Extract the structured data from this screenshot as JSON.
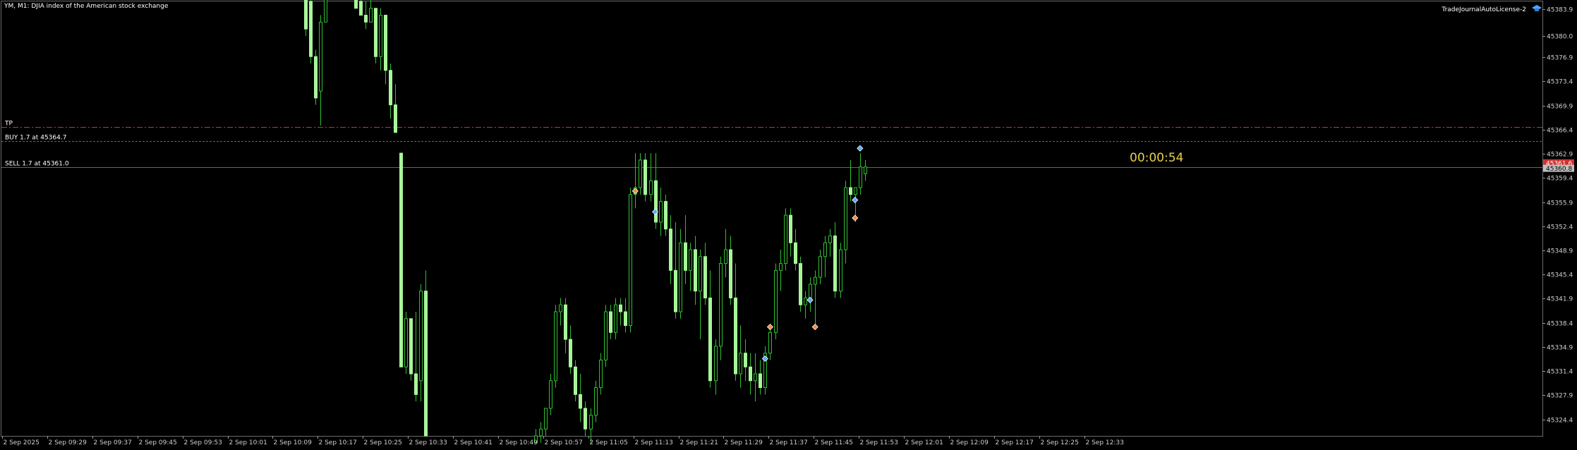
{
  "header": {
    "title": "YM, M1:  DJIA index of the American stock exchange"
  },
  "license_label": "TradeJournalAutoLicense-2",
  "countdown": "00:00:54",
  "chart_data": {
    "type": "candlestick",
    "ylim": [
      45322.0,
      45385.0
    ],
    "yticks": [
      "45383.9",
      "45380.0",
      "45376.9",
      "45373.4",
      "45369.9",
      "45366.4",
      "45362.9",
      "45359.4",
      "45355.9",
      "45352.4",
      "45348.9",
      "45345.4",
      "45341.9",
      "45338.4",
      "45334.9",
      "45331.4",
      "45327.9",
      "45324.4"
    ],
    "xticks": [
      "2 Sep 2025",
      "2 Sep 09:29",
      "2 Sep 09:37",
      "2 Sep 09:45",
      "2 Sep 09:53",
      "2 Sep 10:01",
      "2 Sep 10:09",
      "2 Sep 10:17",
      "2 Sep 10:25",
      "2 Sep 10:33",
      "2 Sep 10:41",
      "2 Sep 10:49",
      "2 Sep 10:57",
      "2 Sep 11:05",
      "2 Sep 11:13",
      "2 Sep 11:21",
      "2 Sep 11:29",
      "2 Sep 11:37",
      "2 Sep 11:45",
      "2 Sep 11:53",
      "2 Sep 12:01",
      "2 Sep 12:09",
      "2 Sep 12:17",
      "2 Sep 12:25",
      "2 Sep 12:33"
    ],
    "levels": [
      {
        "label": "TP",
        "price": 45366.8,
        "color": "#b83a3a",
        "style": "dashdot"
      },
      {
        "label": "BUY 1.7 at 45364.7",
        "price": 45364.7,
        "color": "#2e8b2e",
        "style": "dashed"
      },
      {
        "label": "SELL 1.7 at 45361.0",
        "price": 45361.0,
        "color": "#e03030",
        "style": "solid"
      }
    ],
    "price_tags": [
      {
        "text": "45361.6",
        "price": 45361.6,
        "bg": "#d03030"
      },
      {
        "text": "45360.8",
        "price": 45360.8,
        "bg": "#c0c0c0"
      }
    ],
    "candles": [
      {
        "i": 0,
        "o": 45386,
        "h": 45386,
        "l": 45380,
        "c": 45381
      },
      {
        "i": 1,
        "o": 45385,
        "h": 45386,
        "l": 45376,
        "c": 45377
      },
      {
        "i": 2,
        "o": 45377,
        "h": 45378,
        "l": 45370,
        "c": 45371
      },
      {
        "i": 3,
        "o": 45372,
        "h": 45383,
        "l": 45367,
        "c": 45382
      },
      {
        "i": 4,
        "o": 45382,
        "h": 45386,
        "l": 45382,
        "c": 45386
      },
      {
        "i": 10,
        "o": 45386,
        "h": 45386,
        "l": 45384,
        "c": 45384
      },
      {
        "i": 11,
        "o": 45385,
        "h": 45386,
        "l": 45383,
        "c": 45383
      },
      {
        "i": 12,
        "o": 45383,
        "h": 45385,
        "l": 45381,
        "c": 45382
      },
      {
        "i": 13,
        "o": 45382,
        "h": 45386,
        "l": 45382,
        "c": 45384
      },
      {
        "i": 14,
        "o": 45384,
        "h": 45384,
        "l": 45376,
        "c": 45377
      },
      {
        "i": 15,
        "o": 45377,
        "h": 45384,
        "l": 45375,
        "c": 45383
      },
      {
        "i": 16,
        "o": 45383,
        "h": 45383,
        "l": 45373,
        "c": 45375
      },
      {
        "i": 17,
        "o": 45375,
        "h": 45376,
        "l": 45368,
        "c": 45370
      },
      {
        "i": 18,
        "o": 45370,
        "h": 45373,
        "l": 45366,
        "c": 45366
      },
      {
        "i": 19,
        "o": 45363,
        "h": 45363,
        "l": 45332,
        "c": 45332
      },
      {
        "i": 20,
        "o": 45332,
        "h": 45340,
        "l": 45331,
        "c": 45339
      },
      {
        "i": 21,
        "o": 45339,
        "h": 45339,
        "l": 45330,
        "c": 45331
      },
      {
        "i": 22,
        "o": 45331,
        "h": 45340,
        "l": 45327,
        "c": 45328
      },
      {
        "i": 23,
        "o": 45330,
        "h": 45344,
        "l": 45327,
        "c": 45343
      },
      {
        "i": 24,
        "o": 45343,
        "h": 45346,
        "l": 45322,
        "c": 45322
      },
      {
        "i": 46,
        "o": 45321,
        "h": 45323,
        "l": 45321,
        "c": 45322
      },
      {
        "i": 47,
        "o": 45322,
        "h": 45324,
        "l": 45321,
        "c": 45323
      },
      {
        "i": 48,
        "o": 45323,
        "h": 45326,
        "l": 45322,
        "c": 45326
      },
      {
        "i": 49,
        "o": 45326,
        "h": 45331,
        "l": 45325,
        "c": 45330
      },
      {
        "i": 50,
        "o": 45330,
        "h": 45341,
        "l": 45329,
        "c": 45340
      },
      {
        "i": 51,
        "o": 45340,
        "h": 45342,
        "l": 45338,
        "c": 45341
      },
      {
        "i": 52,
        "o": 45341,
        "h": 45342,
        "l": 45334,
        "c": 45336
      },
      {
        "i": 53,
        "o": 45336,
        "h": 45338,
        "l": 45331,
        "c": 45332
      },
      {
        "i": 54,
        "o": 45332,
        "h": 45333,
        "l": 45327,
        "c": 45328
      },
      {
        "i": 55,
        "o": 45328,
        "h": 45331,
        "l": 45324,
        "c": 45326
      },
      {
        "i": 56,
        "o": 45326,
        "h": 45327,
        "l": 45322,
        "c": 45323
      },
      {
        "i": 57,
        "o": 45323,
        "h": 45326,
        "l": 45321,
        "c": 45325
      },
      {
        "i": 58,
        "o": 45325,
        "h": 45330,
        "l": 45324,
        "c": 45329
      },
      {
        "i": 59,
        "o": 45329,
        "h": 45334,
        "l": 45328,
        "c": 45333
      },
      {
        "i": 60,
        "o": 45333,
        "h": 45341,
        "l": 45332,
        "c": 45340
      },
      {
        "i": 61,
        "o": 45340,
        "h": 45341,
        "l": 45336,
        "c": 45337
      },
      {
        "i": 62,
        "o": 45337,
        "h": 45342,
        "l": 45336,
        "c": 45341
      },
      {
        "i": 63,
        "o": 45341,
        "h": 45342,
        "l": 45338,
        "c": 45340
      },
      {
        "i": 64,
        "o": 45340,
        "h": 45342,
        "l": 45337,
        "c": 45338
      },
      {
        "i": 65,
        "o": 45338,
        "h": 45358,
        "l": 45337,
        "c": 45357
      },
      {
        "i": 66,
        "o": 45357,
        "h": 45363,
        "l": 45355,
        "c": 45358
      },
      {
        "i": 67,
        "o": 45358,
        "h": 45363,
        "l": 45357,
        "c": 45362
      },
      {
        "i": 68,
        "o": 45362,
        "h": 45363,
        "l": 45356,
        "c": 45357
      },
      {
        "i": 69,
        "o": 45357,
        "h": 45363,
        "l": 45356,
        "c": 45359
      },
      {
        "i": 70,
        "o": 45359,
        "h": 45363,
        "l": 45352,
        "c": 45353
      },
      {
        "i": 71,
        "o": 45353,
        "h": 45358,
        "l": 45351,
        "c": 45356
      },
      {
        "i": 72,
        "o": 45356,
        "h": 45357,
        "l": 45351,
        "c": 45352
      },
      {
        "i": 73,
        "o": 45352,
        "h": 45354,
        "l": 45344,
        "c": 45346
      },
      {
        "i": 74,
        "o": 45346,
        "h": 45353,
        "l": 45339,
        "c": 45340
      },
      {
        "i": 75,
        "o": 45340,
        "h": 45352,
        "l": 45339,
        "c": 45350
      },
      {
        "i": 76,
        "o": 45350,
        "h": 45354,
        "l": 45344,
        "c": 45346
      },
      {
        "i": 77,
        "o": 45346,
        "h": 45350,
        "l": 45343,
        "c": 45349
      },
      {
        "i": 78,
        "o": 45349,
        "h": 45351,
        "l": 45341,
        "c": 45343
      },
      {
        "i": 79,
        "o": 45343,
        "h": 45349,
        "l": 45336,
        "c": 45348
      },
      {
        "i": 80,
        "o": 45348,
        "h": 45350,
        "l": 45341,
        "c": 45342
      },
      {
        "i": 81,
        "o": 45342,
        "h": 45346,
        "l": 45329,
        "c": 45330
      },
      {
        "i": 82,
        "o": 45330,
        "h": 45336,
        "l": 45328,
        "c": 45335
      },
      {
        "i": 83,
        "o": 45335,
        "h": 45348,
        "l": 45333,
        "c": 45347
      },
      {
        "i": 84,
        "o": 45347,
        "h": 45352,
        "l": 45345,
        "c": 45349
      },
      {
        "i": 85,
        "o": 45349,
        "h": 45351,
        "l": 45341,
        "c": 45342
      },
      {
        "i": 86,
        "o": 45342,
        "h": 45347,
        "l": 45330,
        "c": 45331
      },
      {
        "i": 87,
        "o": 45331,
        "h": 45338,
        "l": 45329,
        "c": 45334
      },
      {
        "i": 88,
        "o": 45334,
        "h": 45336,
        "l": 45330,
        "c": 45332
      },
      {
        "i": 89,
        "o": 45332,
        "h": 45334,
        "l": 45328,
        "c": 45330
      },
      {
        "i": 90,
        "o": 45330,
        "h": 45334,
        "l": 45327,
        "c": 45331
      },
      {
        "i": 91,
        "o": 45331,
        "h": 45333,
        "l": 45328,
        "c": 45329
      },
      {
        "i": 92,
        "o": 45329,
        "h": 45335,
        "l": 45328,
        "c": 45334
      },
      {
        "i": 93,
        "o": 45334,
        "h": 45338,
        "l": 45333,
        "c": 45337
      },
      {
        "i": 94,
        "o": 45337,
        "h": 45347,
        "l": 45336,
        "c": 45346
      },
      {
        "i": 95,
        "o": 45346,
        "h": 45349,
        "l": 45343,
        "c": 45347
      },
      {
        "i": 96,
        "o": 45347,
        "h": 45355,
        "l": 45346,
        "c": 45354
      },
      {
        "i": 97,
        "o": 45354,
        "h": 45355,
        "l": 45348,
        "c": 45350
      },
      {
        "i": 98,
        "o": 45350,
        "h": 45352,
        "l": 45346,
        "c": 45347
      },
      {
        "i": 99,
        "o": 45347,
        "h": 45348,
        "l": 45340,
        "c": 45341
      },
      {
        "i": 100,
        "o": 45341,
        "h": 45343,
        "l": 45339,
        "c": 45342
      },
      {
        "i": 101,
        "o": 45342,
        "h": 45345,
        "l": 45340,
        "c": 45344
      },
      {
        "i": 102,
        "o": 45344,
        "h": 45346,
        "l": 45338,
        "c": 45345
      },
      {
        "i": 103,
        "o": 45345,
        "h": 45349,
        "l": 45344,
        "c": 45348
      },
      {
        "i": 104,
        "o": 45348,
        "h": 45351,
        "l": 45345,
        "c": 45350
      },
      {
        "i": 105,
        "o": 45350,
        "h": 45352,
        "l": 45348,
        "c": 45351
      },
      {
        "i": 106,
        "o": 45351,
        "h": 45353,
        "l": 45342,
        "c": 45343
      },
      {
        "i": 107,
        "o": 45343,
        "h": 45350,
        "l": 45342,
        "c": 45349
      },
      {
        "i": 108,
        "o": 45349,
        "h": 45359,
        "l": 45347,
        "c": 45358
      },
      {
        "i": 109,
        "o": 45358,
        "h": 45362,
        "l": 45356,
        "c": 45357
      },
      {
        "i": 110,
        "o": 45357,
        "h": 45358,
        "l": 45353,
        "c": 45358
      },
      {
        "i": 111,
        "o": 45358,
        "h": 45363,
        "l": 45357,
        "c": 45361
      },
      {
        "i": 112,
        "o": 45360,
        "h": 45362,
        "l": 45359,
        "c": 45361
      }
    ],
    "markers": [
      {
        "i": 66,
        "price": 45357.5,
        "color": "#ff8a3c"
      },
      {
        "i": 70,
        "price": 45354.5,
        "color": "#5aa8ff"
      },
      {
        "i": 92,
        "price": 45333.2,
        "color": "#5aa8ff"
      },
      {
        "i": 93,
        "price": 45337.8,
        "color": "#ff8a3c"
      },
      {
        "i": 101,
        "price": 45341.7,
        "color": "#5aa8ff"
      },
      {
        "i": 102,
        "price": 45337.8,
        "color": "#ff8a3c"
      },
      {
        "i": 110,
        "price": 45356.2,
        "color": "#5aa8ff"
      },
      {
        "i": 110,
        "price": 45353.6,
        "color": "#ff8a3c"
      },
      {
        "i": 111,
        "price": 45363.7,
        "color": "#5aa8ff"
      }
    ]
  }
}
